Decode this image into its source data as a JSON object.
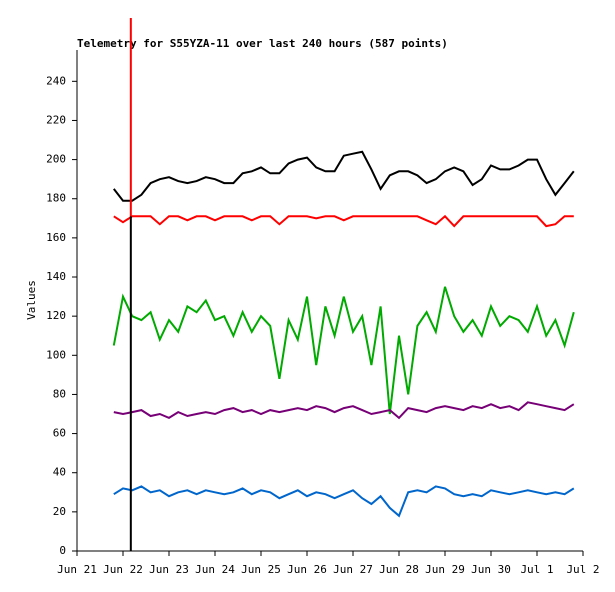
{
  "chart_data": {
    "type": "line",
    "title": "Telemetry for S55YZA-11 over last 240 hours (587 points)",
    "y_label": "Values",
    "x": [
      0.8,
      1.0,
      1.2,
      1.4,
      1.6,
      1.8,
      2.0,
      2.2,
      2.4,
      2.6,
      2.8,
      3.0,
      3.2,
      3.4,
      3.6,
      3.8,
      4.0,
      4.2,
      4.4,
      4.6,
      4.8,
      5.0,
      5.2,
      5.4,
      5.6,
      5.8,
      6.0,
      6.2,
      6.4,
      6.6,
      6.8,
      7.0,
      7.2,
      7.4,
      7.6,
      7.8,
      8.0,
      8.2,
      8.4,
      8.6,
      8.8,
      9.0,
      9.2,
      9.4,
      9.6,
      9.8,
      10.0,
      10.2,
      10.4,
      10.6,
      10.8
    ],
    "series": [
      {
        "color": "#000000",
        "values": [
          185,
          179,
          179,
          182,
          188,
          190,
          191,
          189,
          188,
          189,
          191,
          190,
          188,
          188,
          193,
          194,
          196,
          193,
          193,
          198,
          200,
          201,
          196,
          194,
          194,
          202,
          203,
          204,
          195,
          185,
          192,
          194,
          194,
          192,
          188,
          190,
          194,
          196,
          194,
          187,
          190,
          197,
          195,
          195,
          197,
          200,
          200,
          190,
          182,
          188,
          194
        ]
      },
      {
        "color": "#ff0000",
        "values": [
          171,
          168,
          171,
          171,
          171,
          167,
          171,
          171,
          169,
          171,
          171,
          169,
          171,
          171,
          171,
          169,
          171,
          171,
          167,
          171,
          171,
          171,
          170,
          171,
          171,
          169,
          171,
          171,
          171,
          171,
          171,
          171,
          171,
          171,
          169,
          167,
          171,
          166,
          171,
          171,
          171,
          171,
          171,
          171,
          171,
          171,
          171,
          166,
          167,
          171,
          171
        ]
      },
      {
        "color": "#00aa00",
        "values": [
          105,
          130,
          120,
          118,
          122,
          108,
          118,
          112,
          125,
          122,
          128,
          118,
          120,
          110,
          122,
          112,
          120,
          115,
          88,
          118,
          108,
          130,
          95,
          125,
          110,
          130,
          112,
          120,
          95,
          125,
          70,
          110,
          80,
          115,
          122,
          112,
          135,
          120,
          112,
          118,
          110,
          125,
          115,
          120,
          118,
          112,
          125,
          110,
          118,
          105,
          122
        ]
      },
      {
        "color": "#770077",
        "values": [
          71,
          70,
          71,
          72,
          69,
          70,
          68,
          71,
          69,
          70,
          71,
          70,
          72,
          73,
          71,
          72,
          70,
          72,
          71,
          72,
          73,
          72,
          74,
          73,
          71,
          73,
          74,
          72,
          70,
          71,
          72,
          68,
          73,
          72,
          71,
          73,
          74,
          73,
          72,
          74,
          73,
          75,
          73,
          74,
          72,
          76,
          75,
          74,
          73,
          72,
          75
        ]
      },
      {
        "color": "#0066cc",
        "values": [
          29,
          32,
          31,
          33,
          30,
          31,
          28,
          30,
          31,
          29,
          31,
          30,
          29,
          30,
          32,
          29,
          31,
          30,
          27,
          29,
          31,
          28,
          30,
          29,
          27,
          29,
          31,
          27,
          24,
          28,
          22,
          18,
          30,
          31,
          30,
          33,
          32,
          29,
          28,
          29,
          28,
          31,
          30,
          29,
          30,
          31,
          30,
          29,
          30,
          29,
          32
        ]
      }
    ],
    "cursor_x": 1.17,
    "xlim": [
      0,
      11
    ],
    "xticks": [
      {
        "value": 0,
        "label": "Jun 21"
      },
      {
        "value": 1,
        "label": "Jun 22"
      },
      {
        "value": 2,
        "label": "Jun 23"
      },
      {
        "value": 3,
        "label": "Jun 24"
      },
      {
        "value": 4,
        "label": "Jun 25"
      },
      {
        "value": 5,
        "label": "Jun 26"
      },
      {
        "value": 6,
        "label": "Jun 27"
      },
      {
        "value": 7,
        "label": "Jun 28"
      },
      {
        "value": 8,
        "label": "Jun 29"
      },
      {
        "value": 9,
        "label": "Jun 30"
      },
      {
        "value": 10,
        "label": "Jul 1"
      },
      {
        "value": 11,
        "label": "Jul 2"
      }
    ],
    "ylim": [
      0,
      256
    ],
    "yticks": [
      0,
      20,
      40,
      60,
      80,
      100,
      120,
      140,
      160,
      180,
      200,
      220,
      240
    ]
  }
}
